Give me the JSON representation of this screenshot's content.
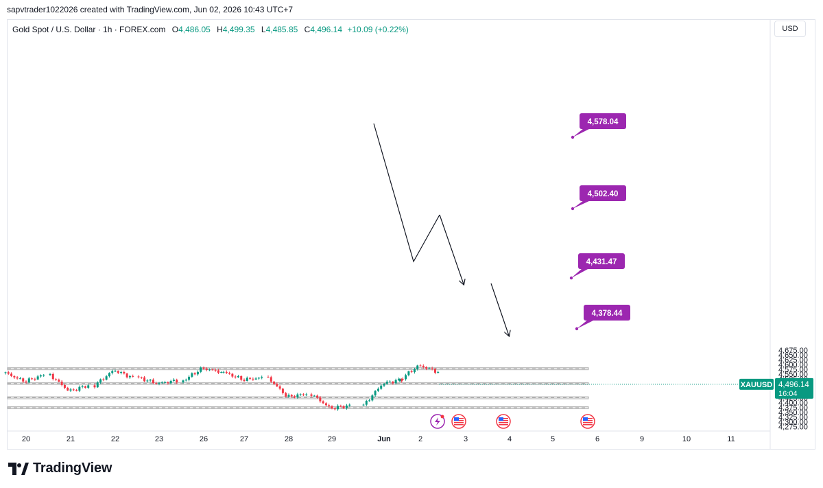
{
  "header": {
    "created_by": "sapvtrader1022026 created with TradingView.com, Jun 02, 2026 10:43 UTC+7"
  },
  "legend": {
    "symbol": "Gold Spot / U.S. Dollar · 1h · FOREX.com",
    "o_label": "O",
    "o": "4,486.05",
    "h_label": "H",
    "h": "4,499.35",
    "l_label": "L",
    "l": "4,485.85",
    "c_label": "C",
    "c": "4,496.14",
    "change": "+10.09 (+0.22%)"
  },
  "currency_button": "USD",
  "price_tag": {
    "symbol": "XAUUSD",
    "price": "4,496.14",
    "countdown": "16:04"
  },
  "footer": {
    "brand": "TradingView"
  },
  "colors": {
    "up": "#089981",
    "down": "#f23645",
    "accent": "#9c27b0",
    "zone": "#e0e0e0"
  },
  "chart_data": {
    "type": "candlestick",
    "symbol": "XAUUSD",
    "ylim": [
      4270,
      4690
    ],
    "y_ticks": [
      4275,
      4300,
      4325,
      4350,
      4375,
      4400,
      4425,
      4450,
      4475,
      4500,
      4525,
      4550,
      4575,
      4600,
      4625,
      4650,
      4675
    ],
    "y_tick_labels": [
      "4,275.00",
      "4,300.00",
      "4,325.00",
      "4,350.00",
      "4,375.00",
      "4,400.00",
      "4,425.00",
      "4,450.00",
      "4,475.00",
      "4,500.00",
      "4,525.00",
      "4,550.00",
      "4,575.00",
      "4,600.00",
      "4,625.00",
      "4,650.00",
      "4,675.00"
    ],
    "x_labels": [
      "20",
      "21",
      "22",
      "23",
      "26",
      "27",
      "28",
      "29",
      "Jun",
      "2",
      "3",
      "4",
      "5",
      "6",
      "9",
      "10",
      "11"
    ],
    "daily_path": [
      [
        4555,
        4510,
        4545
      ],
      [
        4545,
        4460,
        4490
      ],
      [
        4490,
        4570,
        4530
      ],
      [
        4530,
        4500,
        4515
      ],
      [
        4515,
        4580,
        4560
      ],
      [
        4560,
        4520,
        4530
      ],
      [
        4530,
        4430,
        4445
      ],
      [
        4445,
        4370,
        4385
      ],
      [
        4385,
        4500,
        4520
      ],
      [
        4520,
        4595,
        4560
      ],
      [
        4560,
        4450,
        4480
      ],
      [
        4480,
        4496,
        4496
      ]
    ],
    "zones": [
      {
        "label": "4,578.04",
        "from": 4572,
        "to": 4583,
        "to_day": "5"
      },
      {
        "label": "4,502.40",
        "from": 4495,
        "to": 4505,
        "to_day": "5"
      },
      {
        "label": "4,431.47",
        "from": 4420,
        "to": 4431,
        "to_day": "5"
      },
      {
        "label": "4,378.44",
        "from": 4368,
        "to": 4379,
        "to_day": "5"
      }
    ],
    "drawings": [
      {
        "kind": "polyline",
        "points": [
          [
            "Jun",
            4595
          ],
          [
            "2",
            4450
          ],
          [
            "2",
            4500
          ]
        ]
      },
      {
        "kind": "arrow",
        "points": [
          [
            "2",
            4500
          ],
          [
            "3",
            4425
          ]
        ]
      },
      {
        "kind": "arrow",
        "points": [
          [
            "3",
            4425
          ],
          [
            "4",
            4370
          ]
        ]
      }
    ],
    "event_icons": [
      "lightning",
      "us-flag",
      "us-flag",
      "us-flag"
    ]
  }
}
